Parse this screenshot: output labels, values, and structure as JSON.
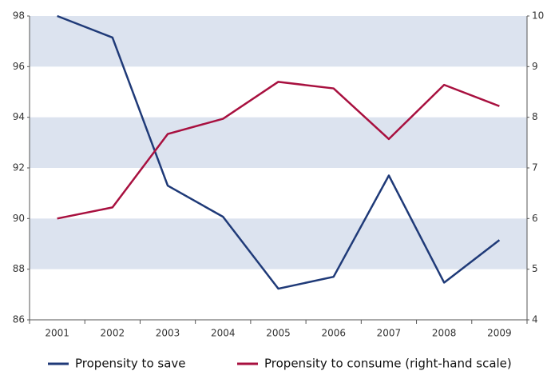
{
  "chart_data": {
    "type": "line",
    "categories": [
      "2001",
      "2002",
      "2003",
      "2004",
      "2005",
      "2006",
      "2007",
      "2008",
      "2009"
    ],
    "series": [
      {
        "name": "Propensity to save",
        "color": "#1f3a78",
        "values": [
          98.0,
          97.15,
          91.3,
          90.07,
          87.23,
          87.7,
          91.7,
          87.47,
          89.15
        ]
      },
      {
        "name": "Propensity to consume (right-hand scale)",
        "color": "#a8103f",
        "axis": "y2",
        "values": [
          6.0,
          6.22,
          7.67,
          7.97,
          8.7,
          8.57,
          7.57,
          8.64,
          8.22
        ]
      }
    ],
    "ylim": [
      86,
      98
    ],
    "yticks": [
      86,
      88,
      90,
      92,
      94,
      96,
      98
    ],
    "y2lim": [
      4,
      10
    ],
    "y2ticks": [
      4,
      5,
      6,
      7,
      8,
      9,
      10
    ],
    "band_color": "#dce3ef"
  }
}
